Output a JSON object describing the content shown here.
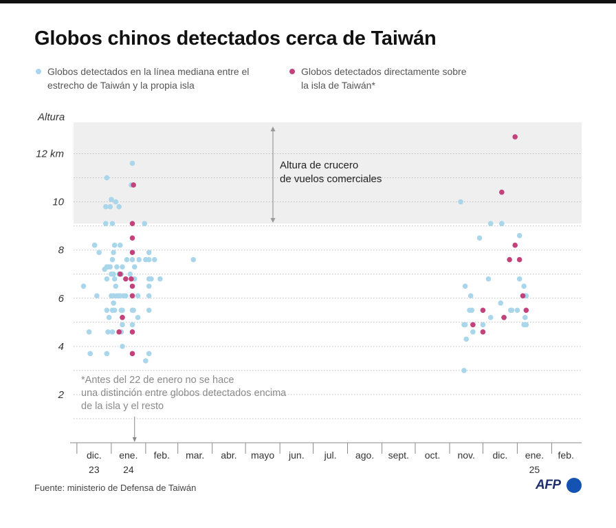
{
  "title": "Globos chinos detectados cerca de Taiwán",
  "legend": {
    "blue": "Globos detectados en la línea mediana entre el estrecho de Taiwán y la propia isla",
    "pink": "Globos detectados directamente sobre la isla de Taiwán*"
  },
  "colors": {
    "blue": "#a9d6ea",
    "pink": "#c4427c",
    "band": "#efefef"
  },
  "source": "Fuente: ministerio de Defensa de Taiwán",
  "logo": "AFP",
  "chart_data": {
    "type": "scatter",
    "ylabel": "Altura",
    "ylim": [
      0,
      13.3
    ],
    "y_ticks": [
      {
        "value": 2,
        "label": "2"
      },
      {
        "value": 4,
        "label": "4"
      },
      {
        "value": 6,
        "label": "6"
      },
      {
        "value": 8,
        "label": "8"
      },
      {
        "value": 10,
        "label": "10"
      },
      {
        "value": 12,
        "label": "12 km"
      }
    ],
    "gridlines": [
      1,
      3,
      5,
      7,
      9,
      11
    ],
    "x_ticks": [
      {
        "date": "2023-12-01",
        "label": "dic.",
        "label2": "23"
      },
      {
        "date": "2024-01-01",
        "label": "ene.",
        "label2": "24"
      },
      {
        "date": "2024-02-01",
        "label": "feb.",
        "label2": ""
      },
      {
        "date": "2024-03-01",
        "label": "mar.",
        "label2": ""
      },
      {
        "date": "2024-04-01",
        "label": "abr.",
        "label2": ""
      },
      {
        "date": "2024-05-01",
        "label": "mayo",
        "label2": ""
      },
      {
        "date": "2024-06-01",
        "label": "jun.",
        "label2": ""
      },
      {
        "date": "2024-07-01",
        "label": "jul.",
        "label2": ""
      },
      {
        "date": "2024-08-01",
        "label": "ago.",
        "label2": ""
      },
      {
        "date": "2024-09-01",
        "label": "sept.",
        "label2": ""
      },
      {
        "date": "2024-10-01",
        "label": "oct.",
        "label2": ""
      },
      {
        "date": "2024-11-01",
        "label": "nov.",
        "label2": ""
      },
      {
        "date": "2024-12-01",
        "label": "dic.",
        "label2": ""
      },
      {
        "date": "2025-01-01",
        "label": "ene.",
        "label2": "25"
      },
      {
        "date": "2025-02-01",
        "label": "feb.",
        "label2": ""
      }
    ],
    "band": {
      "from": 9.1,
      "to": 13.3,
      "label": "Altura de crucero de vuelos comerciales"
    },
    "annotation": {
      "text": "*Antes del 22 de enero no se hace una distinción entre globos detectados encima de la isla y el resto",
      "date": "2024-01-22"
    },
    "series": [
      {
        "name": "Globos detectados en la línea mediana entre el estrecho de Taiwán y la propia isla",
        "color": "#a9d6ea",
        "points": [
          [
            "2023-12-07",
            6.5
          ],
          [
            "2023-12-12",
            4.6
          ],
          [
            "2023-12-13",
            3.7
          ],
          [
            "2023-12-17",
            8.2
          ],
          [
            "2023-12-17",
            8.2
          ],
          [
            "2023-12-19",
            6.1
          ],
          [
            "2023-12-21",
            7.9
          ],
          [
            "2023-12-26",
            7.2
          ],
          [
            "2023-12-27",
            9.8
          ],
          [
            "2023-12-27",
            9.1
          ],
          [
            "2023-12-28",
            11.0
          ],
          [
            "2023-12-28",
            7.3
          ],
          [
            "2023-12-28",
            6.8
          ],
          [
            "2023-12-28",
            5.5
          ],
          [
            "2023-12-29",
            4.6
          ],
          [
            "2023-12-28",
            3.7
          ],
          [
            "2023-12-29",
            7.3
          ],
          [
            "2023-12-30",
            5.2
          ],
          [
            "2023-12-31",
            9.8
          ],
          [
            "2023-12-31",
            7.3
          ],
          [
            "2024-01-01",
            10.1
          ],
          [
            "2024-01-01",
            6.1
          ],
          [
            "2024-01-01",
            7.0
          ],
          [
            "2024-01-02",
            9.1
          ],
          [
            "2024-01-02",
            7.6
          ],
          [
            "2024-01-02",
            5.5
          ],
          [
            "2024-01-02",
            4.6
          ],
          [
            "2024-01-03",
            7.9
          ],
          [
            "2024-01-03",
            7.0
          ],
          [
            "2024-01-03",
            6.1
          ],
          [
            "2024-01-03",
            5.8
          ],
          [
            "2024-01-03",
            5.8
          ],
          [
            "2024-01-04",
            8.2
          ],
          [
            "2024-01-04",
            6.8
          ],
          [
            "2024-01-04",
            5.5
          ],
          [
            "2024-01-05",
            10.0
          ],
          [
            "2024-01-05",
            6.5
          ],
          [
            "2024-01-06",
            7.3
          ],
          [
            "2024-01-06",
            6.1
          ],
          [
            "2024-01-08",
            9.8
          ],
          [
            "2024-01-08",
            7.0
          ],
          [
            "2024-01-08",
            6.1
          ],
          [
            "2024-01-09",
            8.2
          ],
          [
            "2024-01-09",
            6.1
          ],
          [
            "2024-01-10",
            7.0
          ],
          [
            "2024-01-10",
            5.5
          ],
          [
            "2024-01-10",
            4.6
          ],
          [
            "2024-01-11",
            7.3
          ],
          [
            "2024-01-11",
            5.5
          ],
          [
            "2024-01-11",
            5.2
          ],
          [
            "2024-01-11",
            4.9
          ],
          [
            "2024-01-11",
            4.0
          ],
          [
            "2024-01-12",
            6.1
          ],
          [
            "2024-01-14",
            6.1
          ],
          [
            "2024-01-15",
            7.6
          ],
          [
            "2024-01-18",
            7.0
          ],
          [
            "2024-01-19",
            10.7
          ],
          [
            "2024-01-20",
            11.6
          ],
          [
            "2024-01-20",
            7.6
          ],
          [
            "2024-01-20",
            6.1
          ],
          [
            "2024-01-20",
            5.5
          ],
          [
            "2024-01-20",
            4.9
          ],
          [
            "2024-01-21",
            5.5
          ],
          [
            "2024-01-22",
            7.3
          ],
          [
            "2024-01-22",
            6.8
          ],
          [
            "2024-01-25",
            6.1
          ],
          [
            "2024-01-25",
            5.2
          ],
          [
            "2024-01-26",
            7.6
          ],
          [
            "2024-01-31",
            9.1
          ],
          [
            "2024-02-01",
            7.6
          ],
          [
            "2024-02-01",
            3.4
          ],
          [
            "2024-02-04",
            7.9
          ],
          [
            "2024-02-04",
            7.6
          ],
          [
            "2024-02-04",
            6.8
          ],
          [
            "2024-02-04",
            6.5
          ],
          [
            "2024-02-04",
            6.1
          ],
          [
            "2024-02-04",
            5.5
          ],
          [
            "2024-02-04",
            3.7
          ],
          [
            "2024-02-06",
            6.8
          ],
          [
            "2024-02-09",
            7.6
          ],
          [
            "2024-02-14",
            6.8
          ],
          [
            "2024-03-15",
            7.6
          ],
          [
            "2024-11-11",
            10.0
          ],
          [
            "2024-11-14",
            4.9
          ],
          [
            "2024-11-14",
            3.0
          ],
          [
            "2024-11-15",
            6.5
          ],
          [
            "2024-11-15",
            4.9
          ],
          [
            "2024-11-16",
            4.3
          ],
          [
            "2024-11-19",
            5.5
          ],
          [
            "2024-11-20",
            6.1
          ],
          [
            "2024-11-21",
            5.5
          ],
          [
            "2024-11-22",
            4.6
          ],
          [
            "2024-11-28",
            8.5
          ],
          [
            "2024-12-01",
            4.9
          ],
          [
            "2024-12-06",
            6.8
          ],
          [
            "2024-12-08",
            9.1
          ],
          [
            "2024-12-08",
            5.2
          ],
          [
            "2024-12-17",
            5.8
          ],
          [
            "2024-12-18",
            9.1
          ],
          [
            "2024-12-18",
            9.1
          ],
          [
            "2024-12-20",
            5.2
          ],
          [
            "2024-12-26",
            5.5
          ],
          [
            "2024-12-27",
            5.5
          ],
          [
            "2025-01-01",
            5.5
          ],
          [
            "2025-01-03",
            8.6
          ],
          [
            "2025-01-03",
            6.8
          ],
          [
            "2025-01-07",
            6.5
          ],
          [
            "2025-01-07",
            4.9
          ],
          [
            "2025-01-08",
            6.1
          ],
          [
            "2025-01-08",
            5.2
          ],
          [
            "2025-01-09",
            4.9
          ],
          [
            "2025-01-09",
            6.1
          ]
        ]
      },
      {
        "name": "Globos detectados directamente sobre la isla de Taiwán*",
        "color": "#c4427c",
        "points": [
          [
            "2024-01-08",
            4.6
          ],
          [
            "2024-01-09",
            7.0
          ],
          [
            "2024-01-11",
            5.2
          ],
          [
            "2024-01-14",
            6.8
          ],
          [
            "2024-01-19",
            6.8
          ],
          [
            "2024-01-20",
            9.1
          ],
          [
            "2024-01-20",
            8.5
          ],
          [
            "2024-01-20",
            7.9
          ],
          [
            "2024-01-20",
            6.5
          ],
          [
            "2024-01-20",
            6.1
          ],
          [
            "2024-01-20",
            4.6
          ],
          [
            "2024-01-20",
            3.7
          ],
          [
            "2024-01-21",
            10.7
          ],
          [
            "2024-11-22",
            4.9
          ],
          [
            "2024-12-01",
            5.5
          ],
          [
            "2024-12-01",
            4.6
          ],
          [
            "2024-12-18",
            10.4
          ],
          [
            "2024-12-20",
            5.2
          ],
          [
            "2024-12-25",
            7.6
          ],
          [
            "2024-12-30",
            12.7
          ],
          [
            "2024-12-30",
            8.2
          ],
          [
            "2025-01-03",
            7.6
          ],
          [
            "2025-01-06",
            6.1
          ],
          [
            "2025-01-09",
            5.5
          ]
        ]
      }
    ]
  }
}
